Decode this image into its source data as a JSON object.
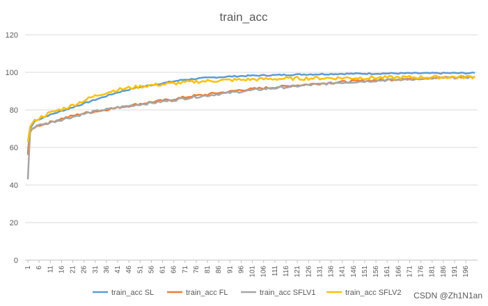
{
  "chart_data": {
    "type": "line",
    "title": "train_acc",
    "xlabel": "",
    "ylabel": "",
    "ylim": [
      0,
      120
    ],
    "yticks": [
      0,
      20,
      40,
      60,
      80,
      100,
      120
    ],
    "xlim": [
      1,
      200
    ],
    "xticks": [
      1,
      6,
      11,
      16,
      21,
      26,
      31,
      36,
      41,
      46,
      51,
      56,
      61,
      66,
      71,
      76,
      81,
      86,
      91,
      96,
      101,
      106,
      111,
      116,
      121,
      126,
      131,
      136,
      141,
      146,
      151,
      156,
      161,
      166,
      171,
      176,
      181,
      186,
      191,
      196
    ],
    "grid": "horizontal",
    "legend": "bottom",
    "series": [
      {
        "name": "train_acc SL",
        "color": "#5b9bd5",
        "points": [
          [
            1,
            57
          ],
          [
            2,
            70
          ],
          [
            3,
            72
          ],
          [
            4,
            74
          ],
          [
            6,
            75
          ],
          [
            10,
            77
          ],
          [
            15,
            79
          ],
          [
            20,
            81
          ],
          [
            25,
            83
          ],
          [
            30,
            85
          ],
          [
            35,
            87
          ],
          [
            40,
            89
          ],
          [
            45,
            90.5
          ],
          [
            50,
            92
          ],
          [
            55,
            93
          ],
          [
            60,
            94
          ],
          [
            65,
            95
          ],
          [
            70,
            96
          ],
          [
            75,
            96.5
          ],
          [
            80,
            97
          ],
          [
            85,
            97.4
          ],
          [
            90,
            97.7
          ],
          [
            95,
            98
          ],
          [
            100,
            98.2
          ],
          [
            110,
            98.5
          ],
          [
            120,
            98.8
          ],
          [
            130,
            99
          ],
          [
            140,
            99.2
          ],
          [
            150,
            99.3
          ],
          [
            160,
            99.4
          ],
          [
            170,
            99.5
          ],
          [
            180,
            99.5
          ],
          [
            190,
            99.6
          ],
          [
            200,
            99.6
          ]
        ]
      },
      {
        "name": "train_acc FL",
        "color": "#ed7d31",
        "points": [
          [
            1,
            56
          ],
          [
            2,
            68
          ],
          [
            3,
            70
          ],
          [
            5,
            71.5
          ],
          [
            10,
            73
          ],
          [
            15,
            75
          ],
          [
            20,
            76.5
          ],
          [
            25,
            78
          ],
          [
            30,
            79
          ],
          [
            35,
            80
          ],
          [
            40,
            81
          ],
          [
            45,
            82
          ],
          [
            50,
            83
          ],
          [
            55,
            84
          ],
          [
            60,
            84.8
          ],
          [
            65,
            85.5
          ],
          [
            70,
            86.5
          ],
          [
            75,
            87.5
          ],
          [
            80,
            88
          ],
          [
            85,
            89
          ],
          [
            90,
            89.5
          ],
          [
            95,
            90.5
          ],
          [
            100,
            91
          ],
          [
            105,
            91.5
          ],
          [
            110,
            92
          ],
          [
            115,
            92.5
          ],
          [
            120,
            93
          ],
          [
            130,
            94
          ],
          [
            140,
            94.8
          ],
          [
            150,
            95.5
          ],
          [
            160,
            96
          ],
          [
            170,
            96.5
          ],
          [
            180,
            97
          ],
          [
            190,
            97.3
          ],
          [
            200,
            97.6
          ]
        ]
      },
      {
        "name": "train_acc SFLV1",
        "color": "#a5a5a5",
        "points": [
          [
            1,
            43
          ],
          [
            2,
            68
          ],
          [
            3,
            70
          ],
          [
            5,
            71.5
          ],
          [
            10,
            73
          ],
          [
            15,
            74.5
          ],
          [
            20,
            76
          ],
          [
            25,
            77.5
          ],
          [
            30,
            79
          ],
          [
            35,
            80
          ],
          [
            40,
            81
          ],
          [
            45,
            82
          ],
          [
            50,
            82.8
          ],
          [
            55,
            83.5
          ],
          [
            60,
            84.3
          ],
          [
            65,
            85
          ],
          [
            70,
            86
          ],
          [
            75,
            86.8
          ],
          [
            80,
            87.5
          ],
          [
            85,
            88.3
          ],
          [
            90,
            89
          ],
          [
            95,
            89.7
          ],
          [
            100,
            90.3
          ],
          [
            105,
            91
          ],
          [
            110,
            91.5
          ],
          [
            115,
            92
          ],
          [
            120,
            92.6
          ],
          [
            130,
            93.6
          ],
          [
            140,
            94.5
          ],
          [
            150,
            95.2
          ],
          [
            160,
            95.8
          ],
          [
            170,
            96.3
          ],
          [
            180,
            96.8
          ],
          [
            190,
            97.2
          ],
          [
            200,
            97.5
          ]
        ]
      },
      {
        "name": "train_acc SFLV2",
        "color": "#ffc000",
        "points": [
          [
            1,
            63
          ],
          [
            2,
            71
          ],
          [
            3,
            73
          ],
          [
            5,
            75
          ],
          [
            10,
            78
          ],
          [
            15,
            80
          ],
          [
            20,
            82
          ],
          [
            25,
            84.5
          ],
          [
            30,
            87
          ],
          [
            35,
            89
          ],
          [
            40,
            90.5
          ],
          [
            45,
            91.5
          ],
          [
            50,
            92.3
          ],
          [
            55,
            93
          ],
          [
            60,
            93.5
          ],
          [
            65,
            94
          ],
          [
            70,
            94.5
          ],
          [
            75,
            95
          ],
          [
            80,
            95.3
          ],
          [
            85,
            95.6
          ],
          [
            90,
            95.8
          ],
          [
            95,
            96
          ],
          [
            100,
            96.2
          ],
          [
            110,
            96.5
          ],
          [
            120,
            96.7
          ],
          [
            130,
            96.9
          ],
          [
            140,
            97
          ],
          [
            150,
            97.1
          ],
          [
            160,
            97.2
          ],
          [
            170,
            97.3
          ],
          [
            180,
            97.4
          ],
          [
            190,
            97.5
          ],
          [
            200,
            97.6
          ]
        ]
      }
    ]
  },
  "watermark": "CSDN @Zh1N1an"
}
